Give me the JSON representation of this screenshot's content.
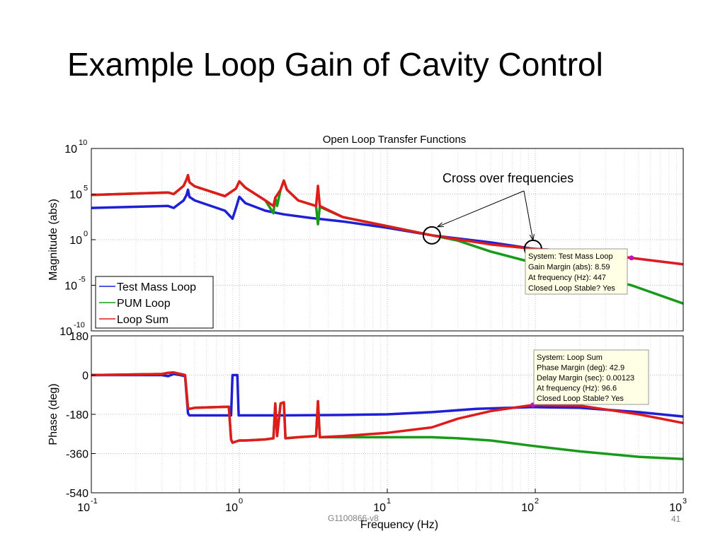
{
  "slide": {
    "title": "Example Loop Gain of Cavity Control",
    "doc_id": "G1100866-v8",
    "page_number": "41"
  },
  "chart_data": [
    {
      "type": "line",
      "title": "Open Loop Transfer Functions",
      "xlabel": "",
      "ylabel": "Magnitude (abs)",
      "x_scale": "log",
      "y_scale": "log",
      "xlim": [
        0.1,
        1000
      ],
      "ylim": [
        1e-10,
        10000000000.0
      ],
      "y_ticks": [
        {
          "base": "10",
          "exp": "10"
        },
        {
          "base": "10",
          "exp": "5"
        },
        {
          "base": "10",
          "exp": "0"
        },
        {
          "base": "10",
          "exp": "-5"
        },
        {
          "base": "10",
          "exp": "-10"
        }
      ],
      "grid": true,
      "legend_position": "bottom-left",
      "series": [
        {
          "name": "Test Mass Loop",
          "color": "#1f1fd6",
          "x": [
            0.1,
            0.33,
            0.36,
            0.42,
            0.44,
            0.45,
            0.46,
            0.5,
            0.8,
            0.9,
            0.95,
            1.0,
            1.1,
            1.5,
            2,
            3,
            5,
            10,
            20,
            50,
            96.6,
            200,
            447,
            1000
          ],
          "y": [
            3000,
            5000,
            3000,
            20000,
            80000,
            300000,
            50000,
            20000,
            1500,
            200,
            3000,
            50000,
            10000,
            1500,
            600,
            250,
            100,
            20,
            3,
            0.5,
            0.1,
            0.05,
            0.01,
            0.002
          ]
        },
        {
          "name": "PUM Loop",
          "color": "#1a9a1a",
          "x": [
            0.1,
            0.33,
            0.36,
            0.42,
            0.44,
            0.45,
            0.46,
            0.5,
            0.8,
            0.95,
            1.0,
            1.1,
            1.5,
            1.7,
            1.75,
            1.8,
            1.9,
            2.0,
            2.1,
            2.5,
            3.3,
            3.4,
            3.5,
            5,
            10,
            20,
            30,
            50,
            96.6,
            200,
            447,
            1000
          ],
          "y": [
            80000,
            150000,
            100000,
            800000,
            4000000,
            12000000,
            2000000,
            700000,
            60000,
            400000,
            2500000,
            500000,
            20000,
            800,
            40000,
            5000,
            300000,
            3000000,
            300000,
            20000,
            5000,
            50,
            4000,
            300,
            30,
            3,
            0.8,
            0.05,
            0.003,
            0.0002,
            1e-05,
            1e-07
          ]
        },
        {
          "name": "Loop Sum",
          "color": "#e01b1b",
          "x": [
            0.1,
            0.33,
            0.36,
            0.42,
            0.44,
            0.45,
            0.46,
            0.5,
            0.8,
            0.95,
            1.0,
            1.1,
            1.5,
            1.7,
            1.75,
            1.9,
            2.0,
            2.1,
            2.5,
            3.3,
            3.4,
            3.5,
            5,
            10,
            20,
            50,
            96.6,
            200,
            447,
            1000
          ],
          "y": [
            80000,
            150000,
            100000,
            800000,
            4000000,
            12000000,
            2000000,
            700000,
            60000,
            400000,
            2500000,
            500000,
            20000,
            5000,
            40000,
            300000,
            3000000,
            300000,
            20000,
            5000,
            800000,
            5000,
            300,
            30,
            3,
            0.3,
            0.1,
            0.05,
            0.01,
            0.002
          ]
        }
      ],
      "annotations": [
        {
          "text": "Cross over frequencies",
          "x": [
            20,
            96.6
          ],
          "y": [
            3,
            0.1
          ]
        },
        {
          "lines": [
            "System: Test Mass Loop",
            "Gain Margin (abs): 8.59",
            "At frequency (Hz): 447",
            "Closed Loop Stable? Yes"
          ],
          "x": 447,
          "y": 0.01
        }
      ]
    },
    {
      "type": "line",
      "title": "",
      "xlabel": "Frequency  (Hz)",
      "ylabel": "Phase (deg)",
      "x_scale": "log",
      "xlim": [
        0.1,
        1000
      ],
      "ylim": [
        -540,
        180
      ],
      "y_ticks": [
        180,
        0,
        -180,
        -360,
        -540
      ],
      "x_ticks": [
        {
          "base": "10",
          "exp": "-1"
        },
        {
          "base": "10",
          "exp": "0"
        },
        {
          "base": "10",
          "exp": "1"
        },
        {
          "base": "10",
          "exp": "2"
        },
        {
          "base": "10",
          "exp": "3"
        }
      ],
      "grid": true,
      "series": [
        {
          "name": "Test Mass Loop",
          "color": "#1f1fd6",
          "x": [
            0.1,
            0.3,
            0.33,
            0.36,
            0.4,
            0.43,
            0.45,
            0.46,
            0.5,
            0.85,
            0.88,
            0.9,
            0.95,
            0.97,
            0.99,
            1.0,
            1.02,
            1.1,
            2,
            5,
            10,
            20,
            40,
            96.6,
            200,
            500,
            1000
          ],
          "y": [
            0,
            0,
            -5,
            5,
            0,
            -5,
            -175,
            -185,
            -185,
            -185,
            -185,
            0,
            0,
            0,
            -185,
            -185,
            -185,
            -185,
            -185,
            -183,
            -180,
            -170,
            -155,
            -147,
            -150,
            -170,
            -190
          ]
        },
        {
          "name": "PUM Loop",
          "color": "#1a9a1a",
          "x": [
            0.1,
            0.3,
            0.33,
            0.36,
            0.4,
            0.43,
            0.45,
            0.46,
            0.5,
            0.85,
            0.88,
            0.9,
            0.95,
            1.0,
            1.02,
            1.1,
            1.5,
            1.7,
            1.75,
            1.8,
            1.9,
            2.0,
            2.05,
            2.5,
            3.3,
            3.4,
            3.5,
            5,
            10,
            20,
            30,
            50,
            96.6,
            200,
            500,
            1000
          ],
          "y": [
            0,
            5,
            10,
            12,
            5,
            0,
            -150,
            -155,
            -150,
            -145,
            -295,
            -310,
            -305,
            -300,
            -300,
            -300,
            -295,
            -290,
            -130,
            -280,
            -130,
            -125,
            -290,
            -285,
            -280,
            -120,
            -285,
            -285,
            -285,
            -285,
            -290,
            -300,
            -325,
            -350,
            -375,
            -385
          ]
        },
        {
          "name": "Loop Sum",
          "color": "#e01b1b",
          "x": [
            0.1,
            0.3,
            0.33,
            0.36,
            0.4,
            0.43,
            0.45,
            0.46,
            0.5,
            0.85,
            0.88,
            0.9,
            0.95,
            1.0,
            1.02,
            1.1,
            1.5,
            1.7,
            1.75,
            1.8,
            1.9,
            2.0,
            2.05,
            2.5,
            3.3,
            3.4,
            3.5,
            5,
            10,
            20,
            30,
            50,
            96.6,
            200,
            500,
            1000
          ],
          "y": [
            0,
            5,
            10,
            12,
            5,
            0,
            -150,
            -155,
            -150,
            -145,
            -295,
            -310,
            -305,
            -300,
            -300,
            -300,
            -295,
            -290,
            -130,
            -280,
            -130,
            -125,
            -290,
            -285,
            -280,
            -120,
            -285,
            -280,
            -265,
            -240,
            -200,
            -165,
            -137,
            -140,
            -180,
            -220
          ]
        }
      ],
      "annotations": [
        {
          "lines": [
            "System: Loop Sum",
            "Phase Margin (deg): 42.9",
            "Delay Margin (sec): 0.00123",
            "At frequency (Hz): 96.6",
            "Closed Loop Stable? Yes"
          ],
          "x": 96.6,
          "y": -137
        }
      ]
    }
  ]
}
